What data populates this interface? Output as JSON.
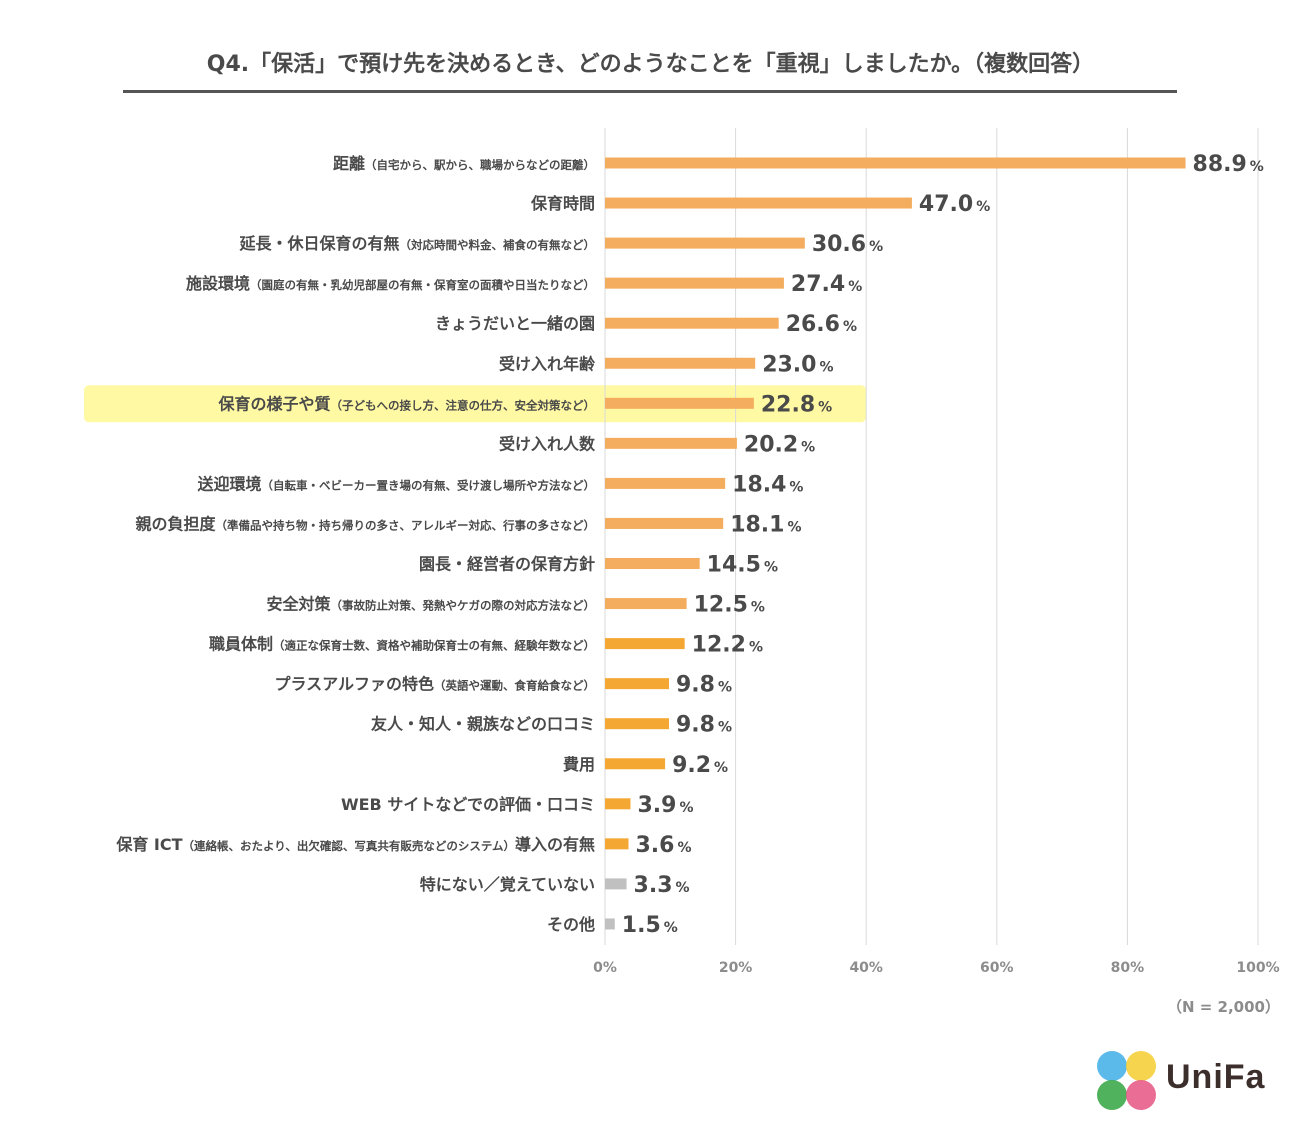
{
  "title": "Q4.「保活」で預け先を決めるとき、どのようなことを「重視」しましたか。（複数回答）",
  "note": "（N = 2,000）",
  "logo": {
    "text": "UniFa",
    "colors": [
      "#4ab3e8",
      "#f5cf3b",
      "#3daa4a",
      "#e85d8a"
    ]
  },
  "colors": {
    "bar_primary": "#f4ad5e",
    "bar_secondary": "#f5a733",
    "bar_other": "#c0c0c0",
    "highlight": "#fff9a3",
    "grid": "#d9d9d9"
  },
  "chart_data": {
    "type": "bar",
    "orientation": "horizontal",
    "xlim": [
      0,
      100
    ],
    "xticks": [
      "0%",
      "20%",
      "40%",
      "60%",
      "80%",
      "100%"
    ],
    "value_suffix": "%",
    "highlighted_index": 6,
    "items": [
      {
        "main": "距離",
        "sub": "（自宅から、駅から、職場からなどの距離）",
        "value": 88.9,
        "value_label": "88.9",
        "color_group": "primary"
      },
      {
        "main": "保育時間",
        "sub": "",
        "value": 47.0,
        "value_label": "47.0",
        "color_group": "primary"
      },
      {
        "main": "延長・休日保育の有無",
        "sub": "（対応時間や料金、補食の有無など）",
        "value": 30.6,
        "value_label": "30.6",
        "color_group": "primary"
      },
      {
        "main": "施設環境",
        "sub": "（園庭の有無・乳幼児部屋の有無・保育室の面積や日当たりなど）",
        "value": 27.4,
        "value_label": "27.4",
        "color_group": "primary"
      },
      {
        "main": "きょうだいと一緒の園",
        "sub": "",
        "value": 26.6,
        "value_label": "26.6",
        "color_group": "primary"
      },
      {
        "main": "受け入れ年齢",
        "sub": "",
        "value": 23.0,
        "value_label": "23.0",
        "color_group": "primary"
      },
      {
        "main": "保育の様子や質",
        "sub": "（子どもへの接し方、注意の仕方、安全対策など）",
        "value": 22.8,
        "value_label": "22.8",
        "color_group": "primary"
      },
      {
        "main": "受け入れ人数",
        "sub": "",
        "value": 20.2,
        "value_label": "20.2",
        "color_group": "primary"
      },
      {
        "main": "送迎環境",
        "sub": "（自転車・ベビーカー置き場の有無、受け渡し場所や方法など）",
        "value": 18.4,
        "value_label": "18.4",
        "color_group": "primary"
      },
      {
        "main": "親の負担度",
        "sub": "（準備品や持ち物・持ち帰りの多さ、アレルギー対応、行事の多さなど）",
        "value": 18.1,
        "value_label": "18.1",
        "color_group": "primary"
      },
      {
        "main": "園長・経営者の保育方針",
        "sub": "",
        "value": 14.5,
        "value_label": "14.5",
        "color_group": "primary"
      },
      {
        "main": "安全対策",
        "sub": "（事故防止対策、発熱やケガの際の対応方法など）",
        "value": 12.5,
        "value_label": "12.5",
        "color_group": "primary"
      },
      {
        "main": "職員体制",
        "sub": "（適正な保育士数、資格や補助保育士の有無、経験年数など）",
        "value": 12.2,
        "value_label": "12.2",
        "color_group": "secondary"
      },
      {
        "main": "プラスアルファの特色",
        "sub": "（英語や運動、食育給食など）",
        "value": 9.8,
        "value_label": "9.8",
        "color_group": "secondary"
      },
      {
        "main": "友人・知人・親族などの口コミ",
        "sub": "",
        "value": 9.8,
        "value_label": "9.8",
        "color_group": "secondary"
      },
      {
        "main": "費用",
        "sub": "",
        "value": 9.2,
        "value_label": "9.2",
        "color_group": "secondary"
      },
      {
        "main": "WEB サイトなどでの評価・口コミ",
        "sub": "",
        "value": 3.9,
        "value_label": "3.9",
        "color_group": "secondary"
      },
      {
        "main": "保育 ICT",
        "sub": "（連絡帳、おたより、出欠確認、写真共有販売などのシステム）",
        "main2": "導入の有無",
        "value": 3.6,
        "value_label": "3.6",
        "color_group": "secondary"
      },
      {
        "main": "特にない／覚えていない",
        "sub": "",
        "value": 3.3,
        "value_label": "3.3",
        "color_group": "other"
      },
      {
        "main": "その他",
        "sub": "",
        "value": 1.5,
        "value_label": "1.5",
        "color_group": "other"
      }
    ]
  }
}
